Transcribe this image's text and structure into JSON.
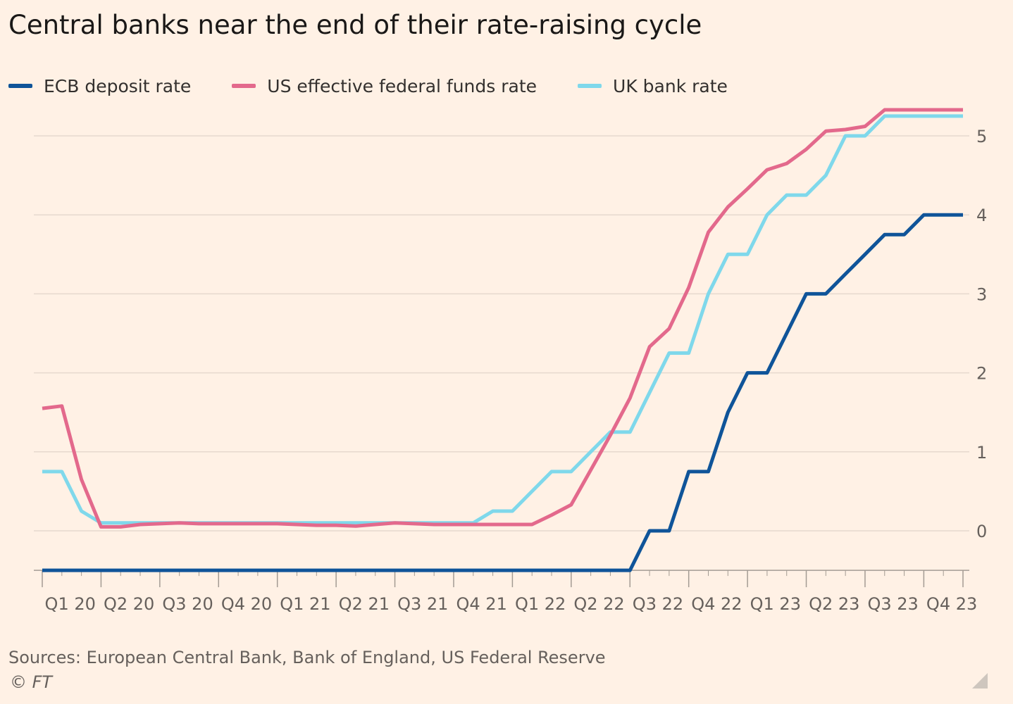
{
  "title": "Central banks near the end of their rate-raising cycle",
  "colors": {
    "ecb": "#0F5499",
    "us": "#E3698C",
    "uk": "#7FD8EB",
    "grid": "#E6D9CE",
    "text": "#66605C"
  },
  "legend": [
    {
      "label": "ECB deposit rate",
      "color": "#0F5499"
    },
    {
      "label": "US effective federal funds rate",
      "color": "#E3698C"
    },
    {
      "label": "UK bank rate",
      "color": "#7FD8EB"
    }
  ],
  "source": "Sources: European Central Bank, Bank of England, US Federal Reserve",
  "copyright": "© FT",
  "chart_data": {
    "type": "line",
    "title": "Central banks near the end of their rate-raising cycle",
    "xlabel": "",
    "ylabel": "",
    "ylim": [
      -0.5,
      5.3
    ],
    "y_ticks": [
      0,
      1,
      2,
      3,
      4,
      5
    ],
    "y_axis_side": "right",
    "grid": true,
    "legend_position": "top-left",
    "x_ticks": [
      "Q1 20",
      "Q2 20",
      "Q3 20",
      "Q4 20",
      "Q1 21",
      "Q2 21",
      "Q3 21",
      "Q4 21",
      "Q1 22",
      "Q2 22",
      "Q3 22",
      "Q4 22",
      "Q1 23",
      "Q2 23",
      "Q3 23",
      "Q4 23"
    ],
    "x": [
      "2020-01",
      "2020-02",
      "2020-03",
      "2020-04",
      "2020-05",
      "2020-06",
      "2020-07",
      "2020-08",
      "2020-09",
      "2020-10",
      "2020-11",
      "2020-12",
      "2021-01",
      "2021-02",
      "2021-03",
      "2021-04",
      "2021-05",
      "2021-06",
      "2021-07",
      "2021-08",
      "2021-09",
      "2021-10",
      "2021-11",
      "2021-12",
      "2022-01",
      "2022-02",
      "2022-03",
      "2022-04",
      "2022-05",
      "2022-06",
      "2022-07",
      "2022-08",
      "2022-09",
      "2022-10",
      "2022-11",
      "2022-12",
      "2023-01",
      "2023-02",
      "2023-03",
      "2023-04",
      "2023-05",
      "2023-06",
      "2023-07",
      "2023-08",
      "2023-09",
      "2023-10",
      "2023-11",
      "2023-12"
    ],
    "series": [
      {
        "name": "ECB deposit rate",
        "color": "#0F5499",
        "values": [
          -0.5,
          -0.5,
          -0.5,
          -0.5,
          -0.5,
          -0.5,
          -0.5,
          -0.5,
          -0.5,
          -0.5,
          -0.5,
          -0.5,
          -0.5,
          -0.5,
          -0.5,
          -0.5,
          -0.5,
          -0.5,
          -0.5,
          -0.5,
          -0.5,
          -0.5,
          -0.5,
          -0.5,
          -0.5,
          -0.5,
          -0.5,
          -0.5,
          -0.5,
          -0.5,
          -0.5,
          0,
          0,
          0.75,
          0.75,
          1.5,
          2,
          2,
          2.5,
          3,
          3,
          3.25,
          3.5,
          3.75,
          3.75,
          4,
          4,
          4
        ]
      },
      {
        "name": "US effective federal funds rate",
        "color": "#E3698C",
        "values": [
          1.55,
          1.58,
          0.65,
          0.05,
          0.05,
          0.08,
          0.09,
          0.1,
          0.09,
          0.09,
          0.09,
          0.09,
          0.09,
          0.08,
          0.07,
          0.07,
          0.06,
          0.08,
          0.1,
          0.09,
          0.08,
          0.08,
          0.08,
          0.08,
          0.08,
          0.08,
          0.2,
          0.33,
          0.77,
          1.21,
          1.68,
          2.33,
          2.56,
          3.08,
          3.78,
          4.1,
          4.33,
          4.57,
          4.65,
          4.83,
          5.06,
          5.08,
          5.12,
          5.33,
          5.33,
          5.33,
          5.33,
          5.33
        ]
      },
      {
        "name": "UK bank rate",
        "color": "#7FD8EB",
        "values": [
          0.75,
          0.75,
          0.25,
          0.1,
          0.1,
          0.1,
          0.1,
          0.1,
          0.1,
          0.1,
          0.1,
          0.1,
          0.1,
          0.1,
          0.1,
          0.1,
          0.1,
          0.1,
          0.1,
          0.1,
          0.1,
          0.1,
          0.1,
          0.25,
          0.25,
          0.5,
          0.75,
          0.75,
          1,
          1.25,
          1.25,
          1.75,
          2.25,
          2.25,
          3,
          3.5,
          3.5,
          4,
          4.25,
          4.25,
          4.5,
          5,
          5,
          5.25,
          5.25,
          5.25,
          5.25,
          5.25
        ]
      }
    ]
  }
}
